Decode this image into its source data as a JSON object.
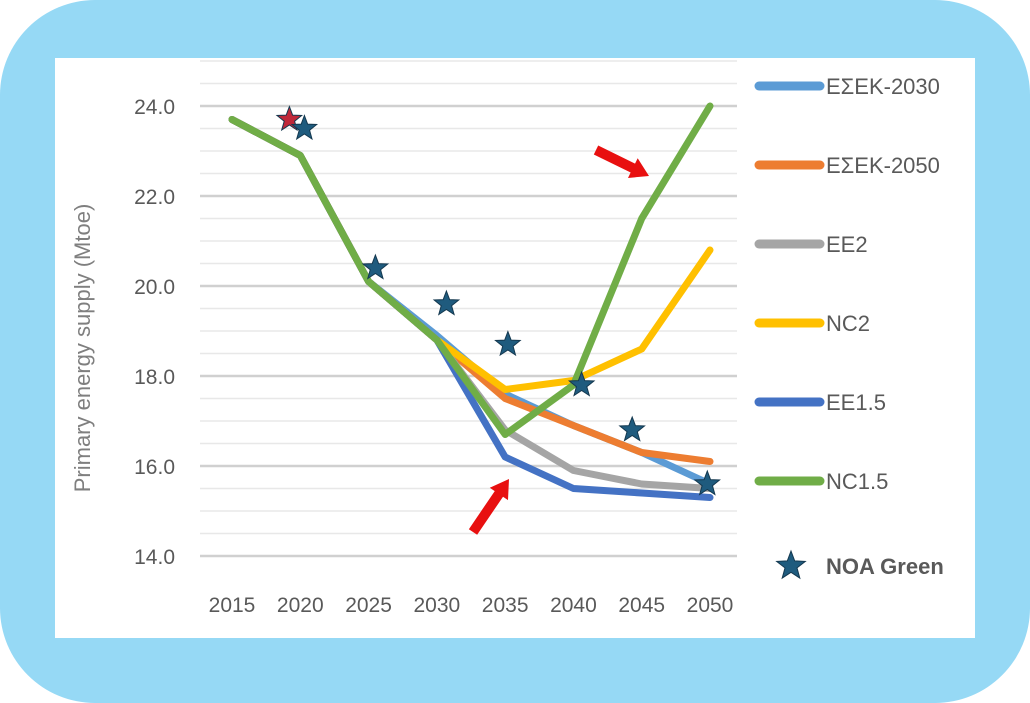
{
  "chart_data": {
    "type": "line",
    "title": "",
    "xlabel": "",
    "ylabel": "Primary energy supply (Mtoe)",
    "ylim": [
      14.0,
      24.0
    ],
    "yticks": [
      "24.0",
      "22.0",
      "20.0",
      "18.0",
      "16.0",
      "14.0"
    ],
    "ytick_values": [
      24,
      22,
      20,
      18,
      16,
      14
    ],
    "grid": true,
    "legend_position": "right",
    "x": [
      2015,
      2020,
      2025,
      2030,
      2035,
      2040,
      2045,
      2050
    ],
    "xtick_labels": [
      "2015",
      "2020",
      "2025",
      "2030",
      "2035",
      "2040",
      "2045",
      "2050"
    ],
    "series": [
      {
        "name": "ΕΣΕΚ-2030",
        "color": "#5b9bd5",
        "values": [
          23.7,
          22.9,
          20.1,
          18.9,
          17.6,
          16.9,
          16.3,
          15.6
        ]
      },
      {
        "name": "ΕΣΕΚ-2050",
        "color": "#ed7d31",
        "values": [
          23.7,
          22.9,
          20.1,
          18.8,
          17.5,
          16.9,
          16.3,
          16.1
        ]
      },
      {
        "name": "EE2",
        "color": "#a5a5a5",
        "values": [
          23.7,
          22.9,
          20.1,
          18.8,
          16.8,
          15.9,
          15.6,
          15.5
        ]
      },
      {
        "name": "NC2",
        "color": "#ffc000",
        "values": [
          23.7,
          22.9,
          20.1,
          18.8,
          17.7,
          17.9,
          18.6,
          20.8
        ]
      },
      {
        "name": "EE1.5",
        "color": "#4472c4",
        "values": [
          23.7,
          22.9,
          20.1,
          18.8,
          16.2,
          15.5,
          15.4,
          15.3
        ]
      },
      {
        "name": "NC1.5",
        "color": "#70ad47",
        "values": [
          23.7,
          22.9,
          20.1,
          18.8,
          16.7,
          17.8,
          21.5,
          24.0
        ]
      }
    ],
    "markers": {
      "name": "NOA Green",
      "color": "#1f5b7e",
      "points": [
        {
          "x": 2019.2,
          "y": 23.7,
          "color": "#c0283a"
        },
        {
          "x": 2020.3,
          "y": 23.5
        },
        {
          "x": 2025.5,
          "y": 20.4
        },
        {
          "x": 2030.7,
          "y": 19.6
        },
        {
          "x": 2035.2,
          "y": 18.7
        },
        {
          "x": 2040.6,
          "y": 17.8
        },
        {
          "x": 2044.3,
          "y": 16.8
        },
        {
          "x": 2049.8,
          "y": 15.6
        }
      ]
    },
    "annotations": [
      {
        "type": "arrow",
        "color": "#e81010",
        "points_to": {
          "x": 2035,
          "y": 16.0
        },
        "from_dir": "bottom-left"
      },
      {
        "type": "arrow",
        "color": "#e81010",
        "points_to": {
          "x": 2045,
          "y": 22.2
        },
        "from_dir": "top-left"
      }
    ]
  }
}
